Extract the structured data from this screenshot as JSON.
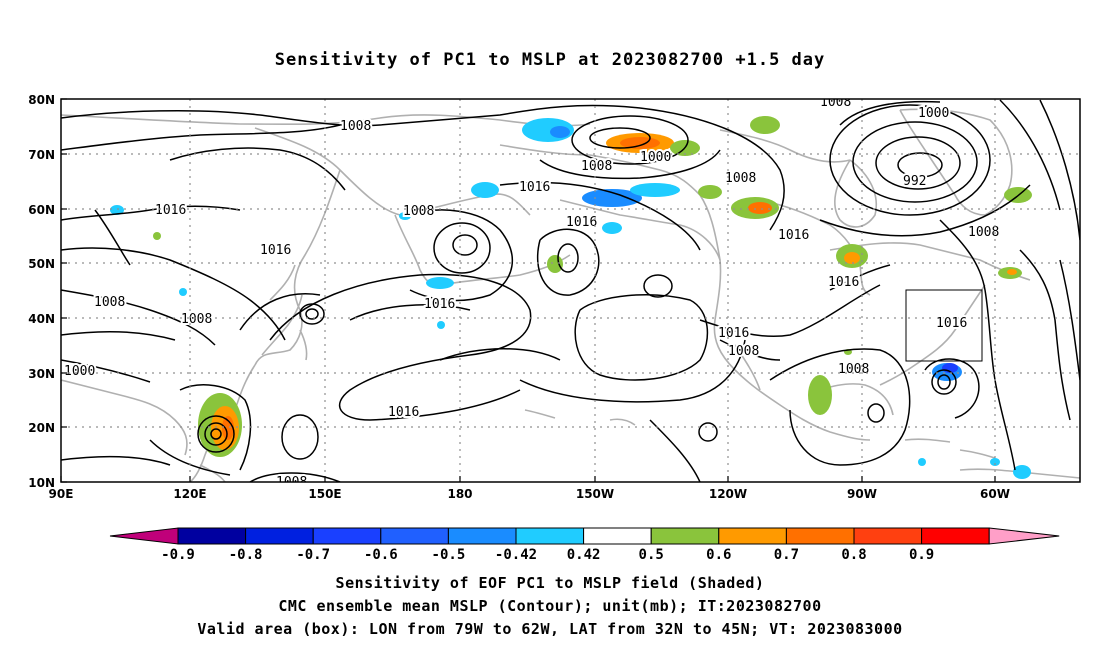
{
  "title": "Sensitivity of PC1 to MSLP at 2023082700 +1.5 day",
  "map": {
    "lon_ticks": [
      "90E",
      "120E",
      "150E",
      "180",
      "150W",
      "120W",
      "90W",
      "60W"
    ],
    "lat_ticks": [
      "80N",
      "70N",
      "60N",
      "50N",
      "40N",
      "30N",
      "20N",
      "10N"
    ],
    "grid": "dotted",
    "contour_labels": [
      "1008",
      "1008",
      "1000",
      "1000",
      "992",
      "1008",
      "1000",
      "1016",
      "1016",
      "1008",
      "1008",
      "1008",
      "1016",
      "1016",
      "1016",
      "1016",
      "1008",
      "1008",
      "1016",
      "1016",
      "1008",
      "1008",
      "1000",
      "1016",
      "1008",
      "1008"
    ],
    "valid_box": {
      "lon_from": "79W",
      "lon_to": "62W",
      "lat_from": "32N",
      "lat_to": "45N"
    }
  },
  "colorbar": {
    "labels": [
      "-0.9",
      "-0.8",
      "-0.7",
      "-0.6",
      "-0.5",
      "-0.42",
      "0.42",
      "0.5",
      "0.6",
      "0.7",
      "0.8",
      "0.9"
    ],
    "colors": [
      "#c0007a",
      "#0000a0",
      "#0020e0",
      "#1a40ff",
      "#2060ff",
      "#1a8cff",
      "#20ccff",
      "#ffffff",
      "#8ac43c",
      "#ff9a00",
      "#ff7000",
      "#ff4010",
      "#ff0000",
      "#ff9fc8"
    ]
  },
  "captions": [
    "Sensitivity of EOF PC1 to MSLP field (Shaded)",
    "CMC ensemble mean MSLP (Contour); unit(mb); IT:2023082700",
    "Valid area (box): LON from 79W to 62W, LAT from 32N to 45N; VT: 2023083000"
  ]
}
